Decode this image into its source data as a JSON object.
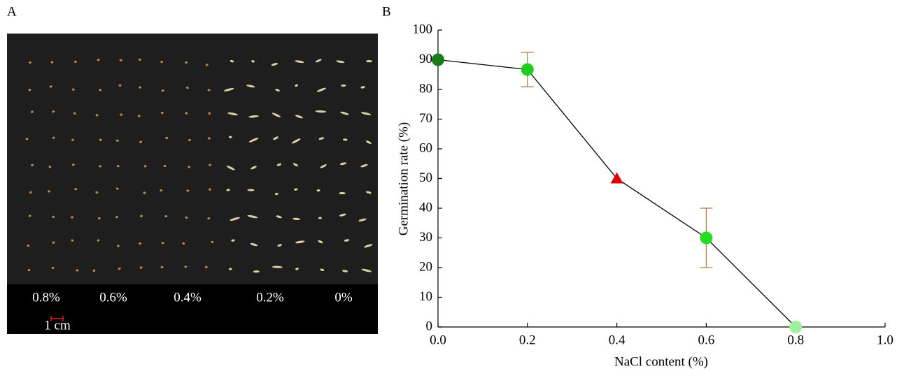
{
  "panel_a": {
    "label": "A",
    "concentrations": [
      "0.8%",
      "0.6%",
      "0.4%",
      "0.2%",
      "0%"
    ],
    "scale_bar": "1 cm"
  },
  "chart_data": {
    "type": "line",
    "panel_label": "B",
    "x_label": "NaCl content (%)",
    "y_label": "Germination rate (%)",
    "x": [
      0,
      0.2,
      0.4,
      0.6,
      0.8
    ],
    "values": [
      90,
      86.7,
      50,
      30,
      0
    ],
    "errors": [
      null,
      5.8,
      null,
      10,
      null
    ],
    "point_colors": [
      "#1b7a1b",
      "#1fcc1f",
      "#e00000",
      "#22dd22",
      "#9ef09e"
    ],
    "markers": [
      "circle",
      "circle",
      "triangle",
      "circle",
      "circle"
    ],
    "line_color": "#000000",
    "error_color": "#b08040",
    "xlim": [
      0,
      1
    ],
    "xticks": [
      {
        "value": 0,
        "label": "0.0"
      },
      0.2,
      0.4,
      0.6,
      0.8,
      {
        "value": 1,
        "label": "1.0"
      }
    ],
    "ylim": [
      0,
      100
    ],
    "yticks": [
      0,
      10,
      20,
      30,
      40,
      50,
      60,
      70,
      80,
      90,
      100
    ]
  }
}
